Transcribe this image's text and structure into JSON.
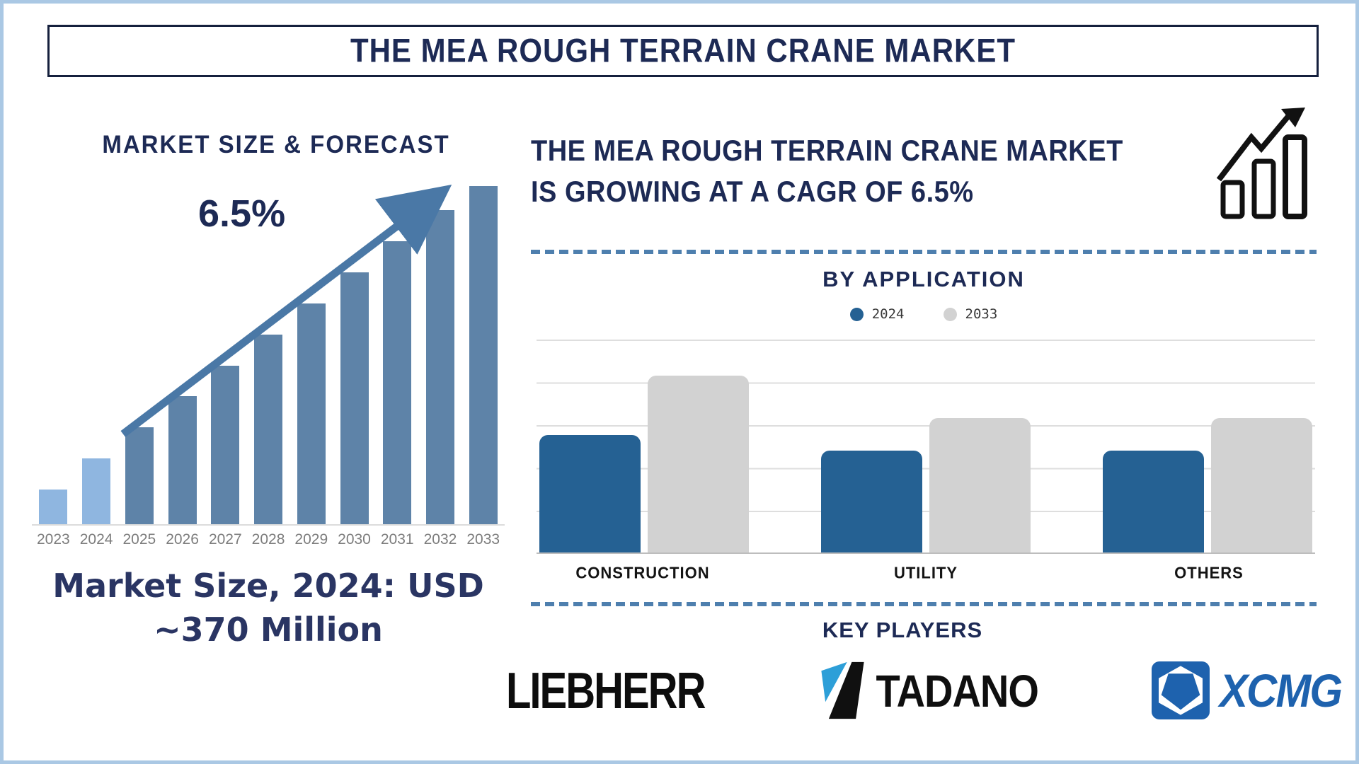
{
  "title": "THE MEA ROUGH TERRAIN CRANE MARKET",
  "left": {
    "section_title": "MARKET SIZE & FORECAST",
    "growth_label": "6.5%",
    "caption": {
      "line1": "Market Size, 2024: USD",
      "line2": "~370 Million"
    }
  },
  "right": {
    "headline": {
      "line1": "THE MEA ROUGH TERRAIN CRANE MARKET",
      "line2": "IS GROWING AT A CAGR OF 6.5%"
    },
    "by_application": {
      "title": "BY APPLICATION"
    },
    "key_players": {
      "title": "KEY PLAYERS",
      "players": [
        {
          "name": "LIEBHERR"
        },
        {
          "name": "TADANO"
        },
        {
          "name": "XCMG"
        }
      ]
    }
  },
  "icons": {
    "growth-chart-icon": "black outlined rising bar chart with up-right arrow",
    "trend-arrow-icon": "steel-blue straight arrow rising left to right",
    "tadano-mark": "square split diagonally, light-blue upper-left triangle, black lower-right shape",
    "xcmg-emblem": "blue rounded square with white hexagon and inner blue pentagon"
  },
  "colors": {
    "navy_text": "#1d2a55",
    "frame_border": "#aac8e4",
    "title_box_border": "#15203d",
    "dashed_line": "#4e7fae",
    "trend_arrow": "#4a78a6",
    "left_bar_historical": "#8fb6e0",
    "left_bar_forecast": "#5e83a8",
    "right_bar_2024": "#256193",
    "right_bar_2033": "#d2d2d2",
    "gridline": "#dedede",
    "year_label": "#7c7c7c",
    "category_label": "#141414",
    "tadano_blue": "#2d9fd8",
    "xcmg_blue": "#1e62ae",
    "logo_black": "#0d0d0d"
  },
  "chart_data": [
    {
      "type": "bar",
      "title": "MARKET SIZE & FORECAST",
      "x": [
        "2023",
        "2024",
        "2025",
        "2026",
        "2027",
        "2028",
        "2029",
        "2030",
        "2031",
        "2032",
        "2033"
      ],
      "relative_heights": [
        10,
        19,
        28,
        37,
        46,
        55,
        64,
        73,
        82,
        91,
        98
      ],
      "historical_years": 2,
      "annotation": "6.5%",
      "note": "no y-axis shown; heights are relative percentages of plot height; 2024 market size stated as USD ~370 Million, CAGR 6.5%",
      "bar_colors": {
        "historical": "#8fb6e0",
        "forecast": "#5e83a8"
      },
      "xlabel": "",
      "ylabel": "",
      "grid": false
    },
    {
      "type": "bar",
      "title": "BY APPLICATION",
      "categories": [
        "CONSTRUCTION",
        "UTILITY",
        "OTHERS"
      ],
      "series": [
        {
          "name": "2024",
          "color": "#256193",
          "values": [
            55,
            48,
            48
          ]
        },
        {
          "name": "2033",
          "color": "#d2d2d2",
          "values": [
            83,
            63,
            63
          ]
        }
      ],
      "note": "no y-axis labels shown; values are relative percentages of plot height read from gridlines",
      "grid": true,
      "legend_position": "top",
      "xlabel": "",
      "ylabel": ""
    }
  ]
}
